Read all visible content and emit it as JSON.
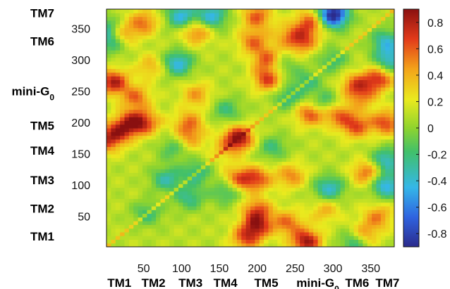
{
  "chart_data": {
    "type": "heatmap",
    "title": "",
    "xlabel": "",
    "ylabel": "",
    "xlim": [
      1,
      381
    ],
    "ylim": [
      1,
      381
    ],
    "xticks": [
      50,
      100,
      150,
      200,
      250,
      300,
      350
    ],
    "yticks": [
      50,
      100,
      150,
      200,
      250,
      300,
      350
    ],
    "colorbar": {
      "range": [
        -0.9,
        0.9
      ],
      "ticks": [
        0.8,
        0.6,
        0.4,
        0.2,
        0,
        -0.2,
        -0.4,
        -0.6,
        -0.8
      ],
      "colors": [
        "#2b2b8c",
        "#2f63e0",
        "#35b7e8",
        "#41c06a",
        "#8fd42e",
        "#eaea1e",
        "#f3a21a",
        "#e23a1a",
        "#8a1010"
      ]
    },
    "segments_x": [
      {
        "label": "TM1",
        "center": 18
      },
      {
        "label": "TM2",
        "center": 63
      },
      {
        "label": "TM3",
        "center": 112
      },
      {
        "label": "TM4",
        "center": 158
      },
      {
        "label": "TM5",
        "center": 212
      },
      {
        "label": "mini-G",
        "sub": "0",
        "center": 280
      },
      {
        "label": "TM6",
        "center": 332
      },
      {
        "label": "TM7",
        "center": 372
      }
    ],
    "segments_y": [
      {
        "label": "TM7",
        "center": 375
      },
      {
        "label": "TM6",
        "center": 330
      },
      {
        "label": "mini-G",
        "sub": "0",
        "center": 250
      },
      {
        "label": "TM5",
        "center": 195
      },
      {
        "label": "TM4",
        "center": 155
      },
      {
        "label": "TM3",
        "center": 108
      },
      {
        "label": "TM2",
        "center": 62
      },
      {
        "label": "TM1",
        "center": 18
      }
    ],
    "blobs": [
      {
        "x": 1,
        "y": 350,
        "v": -0.4
      },
      {
        "x": 1,
        "y": 170,
        "v": 0.45
      },
      {
        "x": 185,
        "y": 15,
        "v": 0.5
      },
      {
        "x": 370,
        "y": 200,
        "v": 0.55
      },
      {
        "x": 200,
        "y": 370,
        "v": 0.5
      },
      {
        "x": 15,
        "y": 185,
        "v": 0.5
      },
      {
        "x": 10,
        "y": 265,
        "v": 0.7
      },
      {
        "x": 265,
        "y": 10,
        "v": 0.75
      },
      {
        "x": 360,
        "y": 270,
        "v": 0.6
      },
      {
        "x": 270,
        "y": 360,
        "v": 0.55
      },
      {
        "x": 35,
        "y": 200,
        "v": 0.65
      },
      {
        "x": 200,
        "y": 35,
        "v": 0.6
      },
      {
        "x": 55,
        "y": 200,
        "v": 0.4
      },
      {
        "x": 200,
        "y": 60,
        "v": 0.5
      },
      {
        "x": 40,
        "y": 240,
        "v": 0.45
      },
      {
        "x": 240,
        "y": 40,
        "v": 0.45
      },
      {
        "x": 110,
        "y": 200,
        "v": 0.4
      },
      {
        "x": 200,
        "y": 110,
        "v": 0.5
      },
      {
        "x": 120,
        "y": 245,
        "v": 0.35
      },
      {
        "x": 245,
        "y": 115,
        "v": 0.4
      },
      {
        "x": 175,
        "y": 110,
        "v": 0.5
      },
      {
        "x": 110,
        "y": 175,
        "v": 0.35
      },
      {
        "x": 215,
        "y": 270,
        "v": 0.6
      },
      {
        "x": 270,
        "y": 215,
        "v": 0.55
      },
      {
        "x": 215,
        "y": 300,
        "v": 0.55
      },
      {
        "x": 305,
        "y": 215,
        "v": 0.5
      },
      {
        "x": 260,
        "y": 330,
        "v": 0.5
      },
      {
        "x": 330,
        "y": 260,
        "v": 0.5
      },
      {
        "x": 330,
        "y": 195,
        "v": 0.55
      },
      {
        "x": 195,
        "y": 330,
        "v": 0.45
      },
      {
        "x": 345,
        "y": 120,
        "v": 0.5
      },
      {
        "x": 120,
        "y": 345,
        "v": 0.45
      },
      {
        "x": 20,
        "y": 340,
        "v": 0.5
      },
      {
        "x": 340,
        "y": 20,
        "v": 0.5
      },
      {
        "x": 50,
        "y": 360,
        "v": 0.45
      },
      {
        "x": 360,
        "y": 50,
        "v": 0.4
      },
      {
        "x": 300,
        "y": 300,
        "v": -0.3
      },
      {
        "x": 240,
        "y": 240,
        "v": -0.35
      },
      {
        "x": 265,
        "y": 265,
        "v": -0.3
      },
      {
        "x": 95,
        "y": 295,
        "v": -0.55
      },
      {
        "x": 295,
        "y": 95,
        "v": -0.5
      },
      {
        "x": 80,
        "y": 110,
        "v": -0.4
      },
      {
        "x": 110,
        "y": 80,
        "v": -0.35
      },
      {
        "x": 55,
        "y": 55,
        "v": -0.3
      },
      {
        "x": 120,
        "y": 120,
        "v": -0.35
      },
      {
        "x": 160,
        "y": 90,
        "v": -0.35
      },
      {
        "x": 90,
        "y": 160,
        "v": -0.3
      },
      {
        "x": 370,
        "y": 100,
        "v": -0.6
      },
      {
        "x": 100,
        "y": 370,
        "v": -0.55
      },
      {
        "x": 375,
        "y": 300,
        "v": -0.5
      },
      {
        "x": 300,
        "y": 375,
        "v": -0.5
      },
      {
        "x": 140,
        "y": 370,
        "v": -0.55
      },
      {
        "x": 370,
        "y": 140,
        "v": -0.5
      },
      {
        "x": 330,
        "y": 10,
        "v": -0.5
      },
      {
        "x": 10,
        "y": 330,
        "v": -0.45
      },
      {
        "x": 220,
        "y": 160,
        "v": -0.3
      },
      {
        "x": 160,
        "y": 220,
        "v": -0.3
      },
      {
        "x": 290,
        "y": 230,
        "v": -0.4
      },
      {
        "x": 230,
        "y": 290,
        "v": -0.35
      },
      {
        "x": 300,
        "y": 370,
        "v": -0.6
      },
      {
        "x": 370,
        "y": 330,
        "v": -0.45
      },
      {
        "x": 175,
        "y": 175,
        "v": 0.8
      },
      {
        "x": 155,
        "y": 155,
        "v": 0.2
      },
      {
        "x": 60,
        "y": 290,
        "v": 0.3
      },
      {
        "x": 290,
        "y": 60,
        "v": 0.3
      },
      {
        "x": 240,
        "y": 340,
        "v": 0.3
      },
      {
        "x": 340,
        "y": 240,
        "v": 0.3
      }
    ]
  }
}
